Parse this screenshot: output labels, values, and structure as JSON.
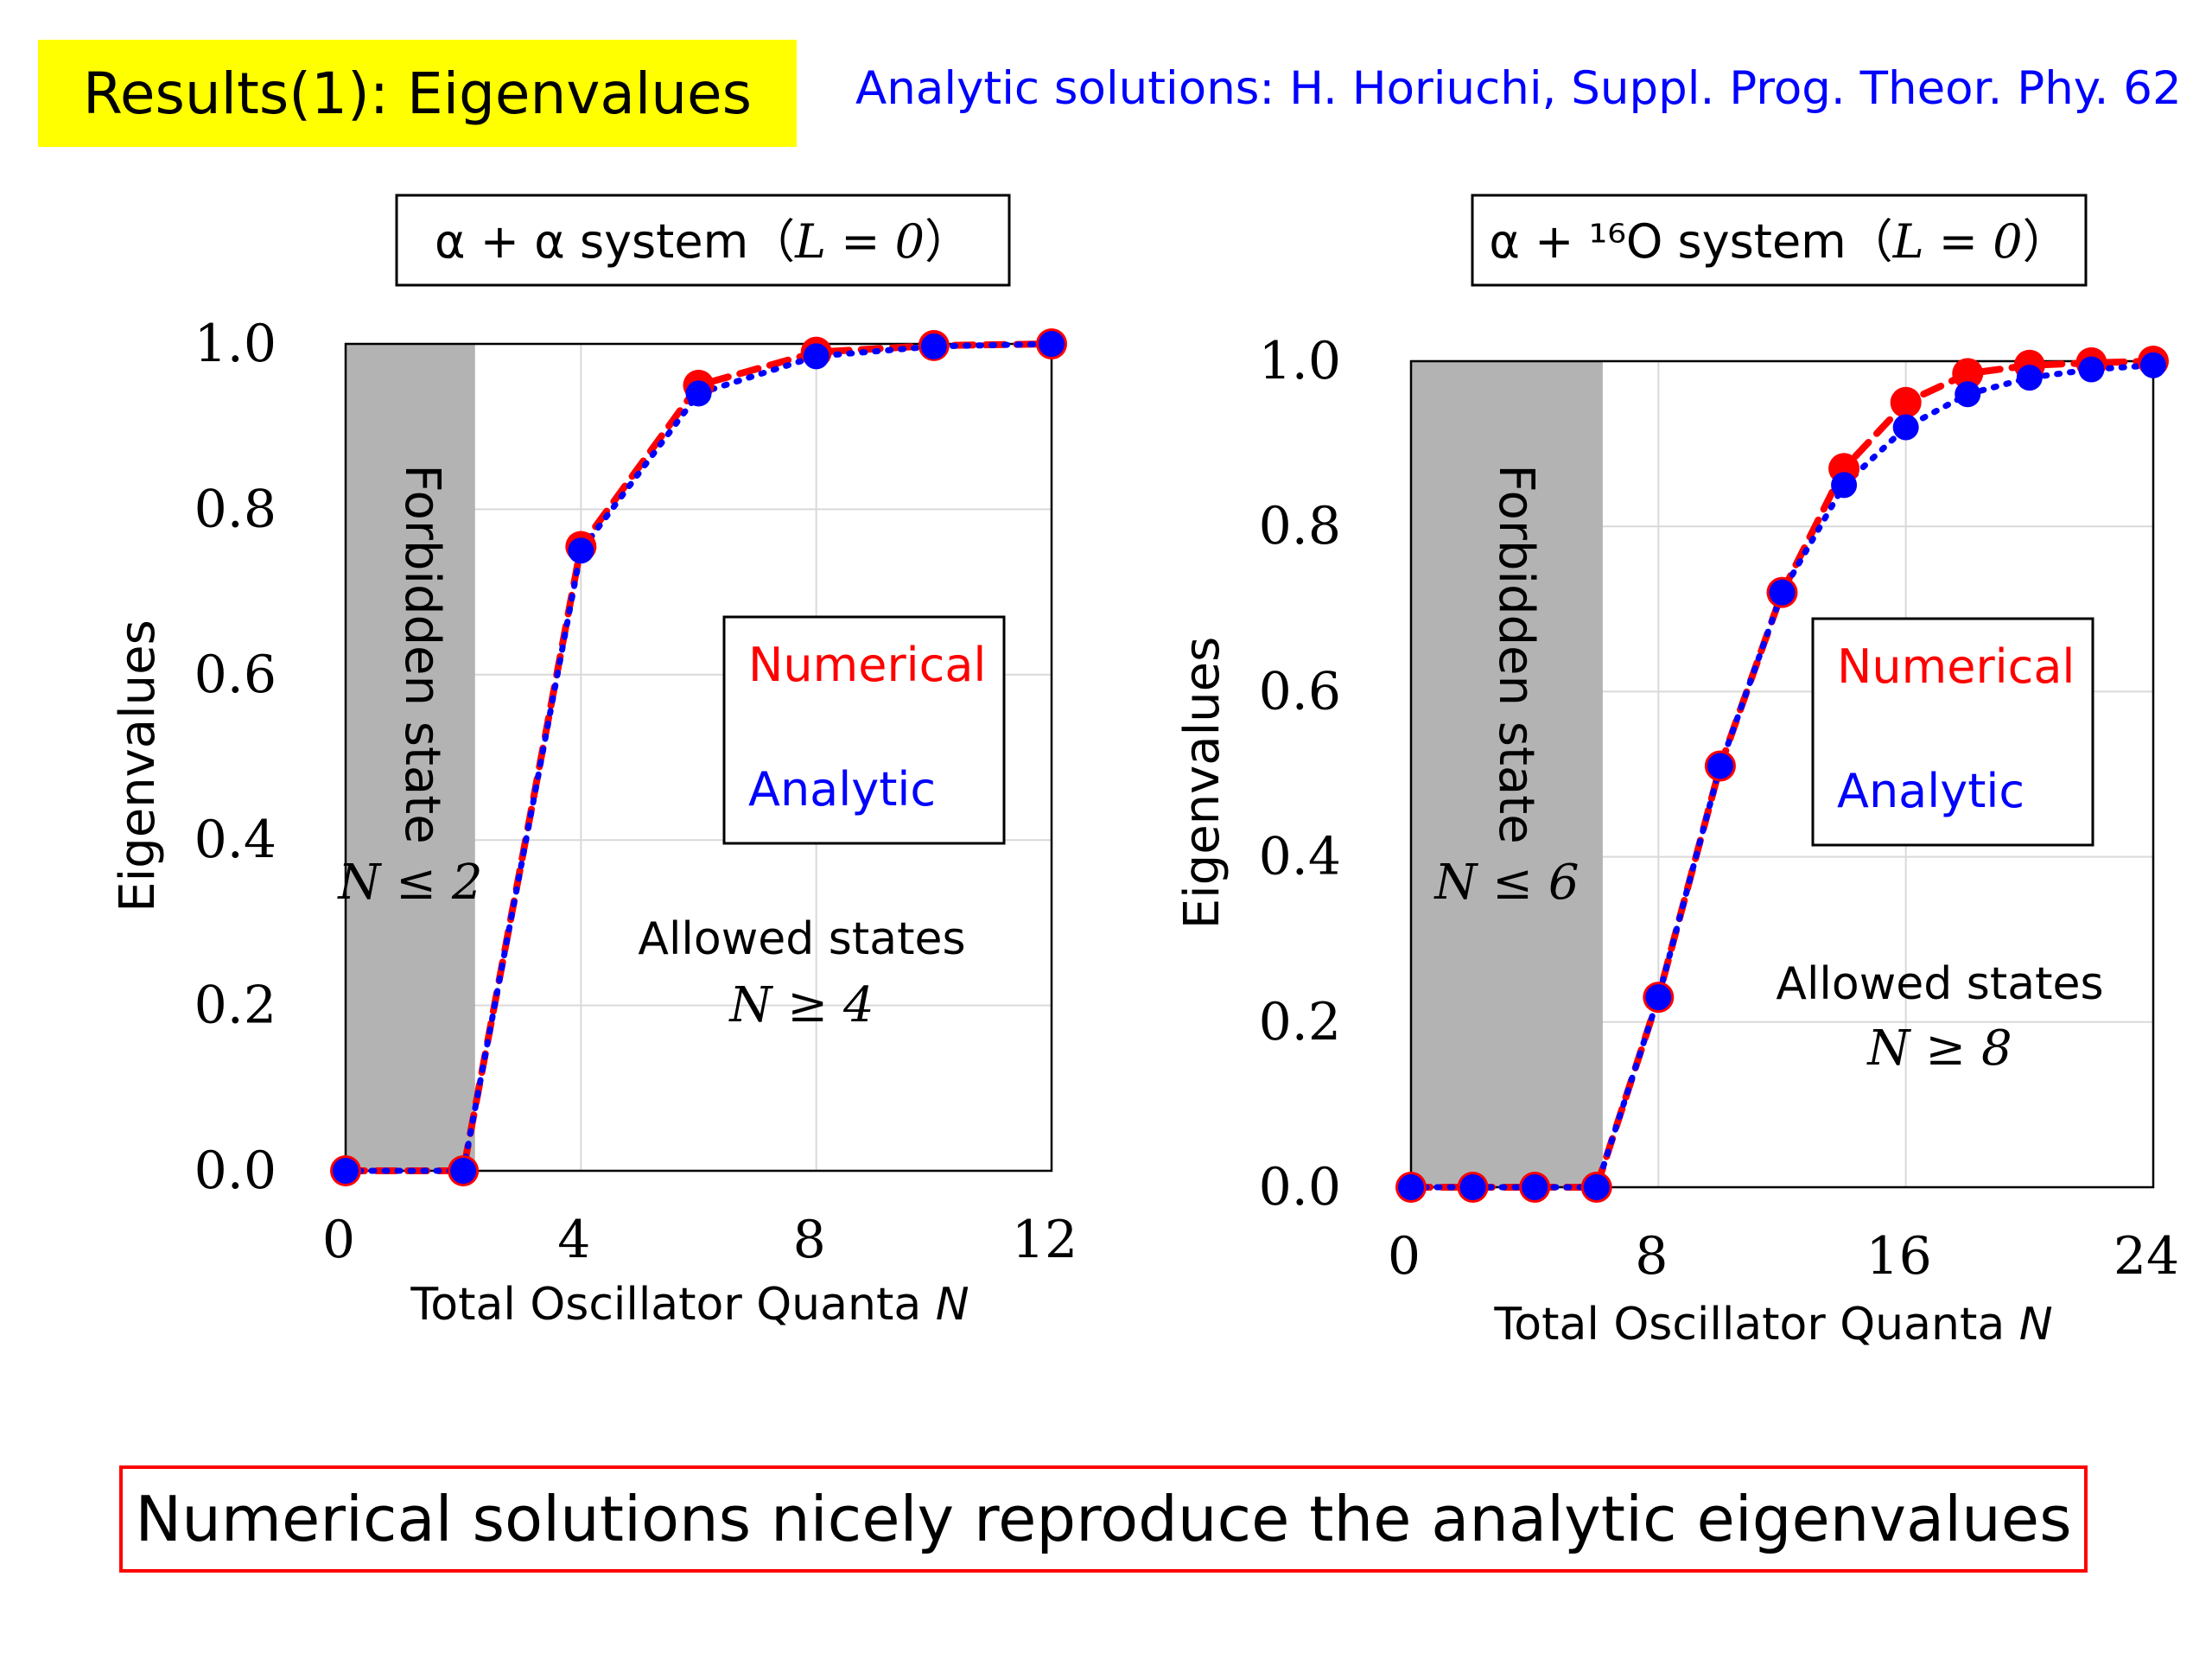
{
  "slide": {
    "title": "Results(1): Eigenvalues",
    "reference": "Analytic solutions: H. Horiuchi, Suppl. Prog. Theor. Phy. 62",
    "conclusion": "Numerical solutions nicely reproduce the analytic eigenvalues"
  },
  "colors": {
    "numerical": "#ff0000",
    "analytic": "#0000ff",
    "forbidden": "#b3b3b3",
    "title_bg": "#ffff00"
  },
  "chart_data": [
    {
      "type": "line",
      "title_pre": "α + α system（",
      "title_math": "L = 0",
      "title_post": "）",
      "xlabel_text": "Total Oscillator Quanta ",
      "xlabel_var": "N",
      "ylabel": "Eigenvalues",
      "xlim": [
        0,
        12
      ],
      "ylim": [
        0,
        1
      ],
      "xticks": [
        "0",
        "4",
        "8",
        "12"
      ],
      "xtick_values": [
        0,
        4,
        8,
        12
      ],
      "yticks": [
        "0.0",
        "0.2",
        "0.4",
        "0.6",
        "0.8",
        "1.0"
      ],
      "ytick_values": [
        0,
        0.2,
        0.4,
        0.6,
        0.8,
        1.0
      ],
      "grid": true,
      "forbidden_region": {
        "x": [
          0,
          2.2
        ],
        "label": "Forbidden state",
        "condition": "N ≤ 2"
      },
      "allowed_label": "Allowed states",
      "allowed_condition": "N ≥ 4",
      "legend": {
        "position": "right",
        "numerical": "Numerical",
        "analytic": "Analytic"
      },
      "x": [
        0,
        2,
        4,
        6,
        8,
        10,
        12
      ],
      "series": [
        {
          "name": "Numerical",
          "values": [
            0.0,
            0.0,
            0.755,
            0.95,
            0.99,
            0.998,
            1.0
          ]
        },
        {
          "name": "Analytic",
          "values": [
            0.0,
            0.0,
            0.75,
            0.94,
            0.985,
            0.997,
            1.0
          ]
        }
      ]
    },
    {
      "type": "line",
      "title_pre": "α + ¹⁶O system（",
      "title_math": "L = 0",
      "title_post": "）",
      "xlabel_text": "Total Oscillator Quanta ",
      "xlabel_var": "N",
      "ylabel": "Eigenvalues",
      "xlim": [
        0,
        24
      ],
      "ylim": [
        0,
        1
      ],
      "xticks": [
        "0",
        "8",
        "16",
        "24"
      ],
      "xtick_values": [
        0,
        8,
        16,
        24
      ],
      "yticks": [
        "0.0",
        "0.2",
        "0.4",
        "0.6",
        "0.8",
        "1.0"
      ],
      "ytick_values": [
        0,
        0.2,
        0.4,
        0.6,
        0.8,
        1.0
      ],
      "grid": true,
      "forbidden_region": {
        "x": [
          0,
          6.2
        ],
        "label": "Forbidden state",
        "condition": "N ≤ 6"
      },
      "allowed_label": "Allowed states",
      "allowed_condition": "N ≥ 8",
      "legend": {
        "position": "right",
        "numerical": "Numerical",
        "analytic": "Analytic"
      },
      "x": [
        0,
        2,
        4,
        6,
        8,
        10,
        12,
        14,
        16,
        18,
        20,
        22,
        24
      ],
      "series": [
        {
          "name": "Numerical",
          "values": [
            0.0,
            0.0,
            0.0,
            0.0,
            0.23,
            0.51,
            0.72,
            0.87,
            0.95,
            0.985,
            0.995,
            0.998,
            1.0
          ]
        },
        {
          "name": "Analytic",
          "values": [
            0.0,
            0.0,
            0.0,
            0.0,
            0.23,
            0.51,
            0.72,
            0.85,
            0.92,
            0.96,
            0.98,
            0.99,
            0.995
          ]
        }
      ]
    }
  ]
}
